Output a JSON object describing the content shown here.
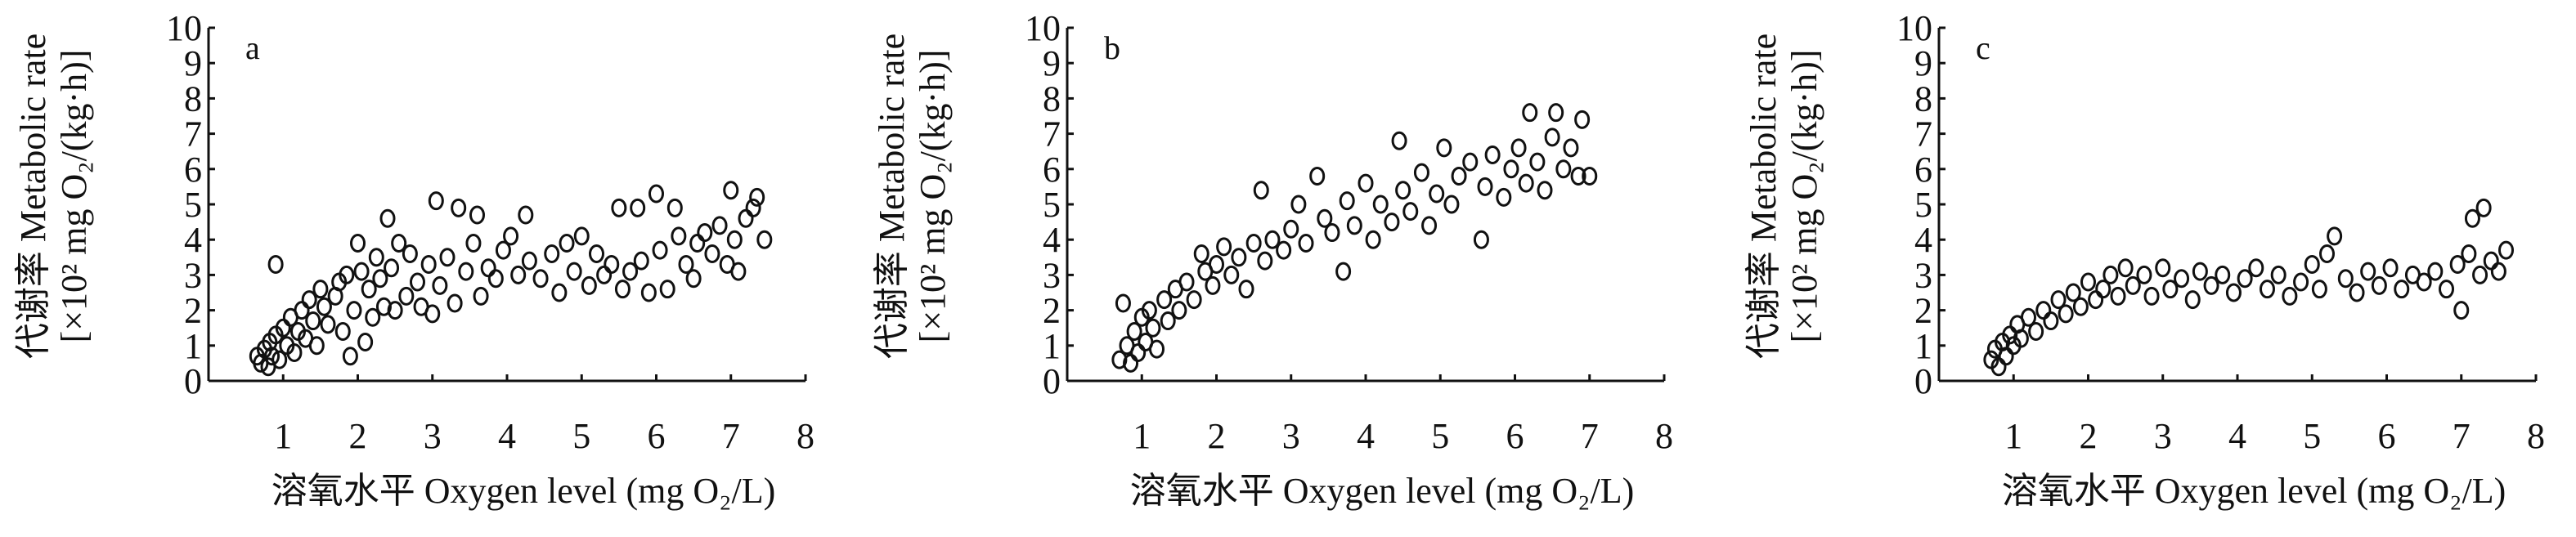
{
  "chart_data": [
    {
      "type": "scatter",
      "panel_label": "a",
      "xlabel": "溶氧水平 Oxygen level (mg O₂/L)",
      "ylabel_line1": "代谢率 Metabolic rate",
      "ylabel_line2": "[×10² mg O₂/(kg·h)]",
      "xlim": [
        0,
        8
      ],
      "ylim": [
        0,
        10
      ],
      "xticks": [
        "1",
        "2",
        "3",
        "4",
        "5",
        "6",
        "7",
        "8"
      ],
      "yticks": [
        "0",
        "1",
        "2",
        "3",
        "4",
        "5",
        "6",
        "7",
        "8",
        "9",
        "10"
      ],
      "grid": false,
      "points": [
        [
          0.65,
          0.7
        ],
        [
          0.7,
          0.5
        ],
        [
          0.75,
          0.9
        ],
        [
          0.8,
          0.4
        ],
        [
          0.82,
          1.1
        ],
        [
          0.85,
          0.7
        ],
        [
          0.9,
          3.3
        ],
        [
          0.9,
          1.3
        ],
        [
          0.95,
          0.6
        ],
        [
          1.0,
          1.5
        ],
        [
          1.05,
          1.0
        ],
        [
          1.1,
          1.8
        ],
        [
          1.15,
          0.8
        ],
        [
          1.2,
          1.4
        ],
        [
          1.25,
          2.0
        ],
        [
          1.3,
          1.2
        ],
        [
          1.35,
          2.3
        ],
        [
          1.4,
          1.7
        ],
        [
          1.45,
          1.0
        ],
        [
          1.5,
          2.6
        ],
        [
          1.55,
          2.1
        ],
        [
          1.6,
          1.6
        ],
        [
          1.7,
          2.4
        ],
        [
          1.75,
          2.8
        ],
        [
          1.8,
          1.4
        ],
        [
          1.85,
          3.0
        ],
        [
          1.9,
          0.7
        ],
        [
          1.95,
          2.0
        ],
        [
          2.0,
          3.9
        ],
        [
          2.05,
          3.1
        ],
        [
          2.1,
          1.1
        ],
        [
          2.15,
          2.6
        ],
        [
          2.2,
          1.8
        ],
        [
          2.25,
          3.5
        ],
        [
          2.3,
          2.9
        ],
        [
          2.35,
          2.1
        ],
        [
          2.4,
          4.6
        ],
        [
          2.45,
          3.2
        ],
        [
          2.5,
          2.0
        ],
        [
          2.55,
          3.9
        ],
        [
          2.65,
          2.4
        ],
        [
          2.7,
          3.6
        ],
        [
          2.8,
          2.8
        ],
        [
          2.85,
          2.1
        ],
        [
          2.95,
          3.3
        ],
        [
          3.0,
          1.9
        ],
        [
          3.05,
          5.1
        ],
        [
          3.1,
          2.7
        ],
        [
          3.2,
          3.5
        ],
        [
          3.3,
          2.2
        ],
        [
          3.35,
          4.9
        ],
        [
          3.45,
          3.1
        ],
        [
          3.55,
          3.9
        ],
        [
          3.6,
          4.7
        ],
        [
          3.65,
          2.4
        ],
        [
          3.75,
          3.2
        ],
        [
          3.85,
          2.9
        ],
        [
          3.95,
          3.7
        ],
        [
          4.05,
          4.1
        ],
        [
          4.15,
          3.0
        ],
        [
          4.25,
          4.7
        ],
        [
          4.3,
          3.4
        ],
        [
          4.45,
          2.9
        ],
        [
          4.6,
          3.6
        ],
        [
          4.7,
          2.5
        ],
        [
          4.8,
          3.9
        ],
        [
          4.9,
          3.1
        ],
        [
          5.0,
          4.1
        ],
        [
          5.1,
          2.7
        ],
        [
          5.2,
          3.6
        ],
        [
          5.3,
          3.0
        ],
        [
          5.4,
          3.3
        ],
        [
          5.5,
          4.9
        ],
        [
          5.55,
          2.6
        ],
        [
          5.65,
          3.1
        ],
        [
          5.75,
          4.9
        ],
        [
          5.8,
          3.4
        ],
        [
          5.9,
          2.5
        ],
        [
          6.0,
          5.3
        ],
        [
          6.05,
          3.7
        ],
        [
          6.15,
          2.6
        ],
        [
          6.25,
          4.9
        ],
        [
          6.3,
          4.1
        ],
        [
          6.4,
          3.3
        ],
        [
          6.5,
          2.9
        ],
        [
          6.55,
          3.9
        ],
        [
          6.65,
          4.2
        ],
        [
          6.75,
          3.6
        ],
        [
          6.85,
          4.4
        ],
        [
          6.95,
          3.3
        ],
        [
          7.0,
          5.4
        ],
        [
          7.05,
          4.0
        ],
        [
          7.1,
          3.1
        ],
        [
          7.2,
          4.6
        ],
        [
          7.3,
          4.9
        ],
        [
          7.35,
          5.2
        ],
        [
          7.45,
          4.0
        ]
      ]
    },
    {
      "type": "scatter",
      "panel_label": "b",
      "xlabel": "溶氧水平 Oxygen level (mg O₂/L)",
      "ylabel_line1": "代谢率 Metabolic rate",
      "ylabel_line2": "[×10² mg O₂/(kg·h)]",
      "xlim": [
        0,
        8
      ],
      "ylim": [
        0,
        10
      ],
      "xticks": [
        "1",
        "2",
        "3",
        "4",
        "5",
        "6",
        "7",
        "8"
      ],
      "yticks": [
        "0",
        "1",
        "2",
        "3",
        "4",
        "5",
        "6",
        "7",
        "8",
        "9",
        "10"
      ],
      "grid": false,
      "points": [
        [
          0.7,
          0.6
        ],
        [
          0.75,
          2.2
        ],
        [
          0.8,
          1.0
        ],
        [
          0.85,
          0.5
        ],
        [
          0.9,
          1.4
        ],
        [
          0.95,
          0.8
        ],
        [
          1.0,
          1.8
        ],
        [
          1.05,
          1.1
        ],
        [
          1.1,
          2.0
        ],
        [
          1.15,
          1.5
        ],
        [
          1.2,
          0.9
        ],
        [
          1.3,
          2.3
        ],
        [
          1.35,
          1.7
        ],
        [
          1.45,
          2.6
        ],
        [
          1.5,
          2.0
        ],
        [
          1.6,
          2.8
        ],
        [
          1.7,
          2.3
        ],
        [
          1.8,
          3.6
        ],
        [
          1.85,
          3.1
        ],
        [
          1.95,
          2.7
        ],
        [
          2.0,
          3.3
        ],
        [
          2.1,
          3.8
        ],
        [
          2.2,
          3.0
        ],
        [
          2.3,
          3.5
        ],
        [
          2.4,
          2.6
        ],
        [
          2.5,
          3.9
        ],
        [
          2.6,
          5.4
        ],
        [
          2.65,
          3.4
        ],
        [
          2.75,
          4.0
        ],
        [
          2.9,
          3.7
        ],
        [
          3.0,
          4.3
        ],
        [
          3.1,
          5.0
        ],
        [
          3.2,
          3.9
        ],
        [
          3.35,
          5.8
        ],
        [
          3.45,
          4.6
        ],
        [
          3.55,
          4.2
        ],
        [
          3.7,
          3.1
        ],
        [
          3.75,
          5.1
        ],
        [
          3.85,
          4.4
        ],
        [
          4.0,
          5.6
        ],
        [
          4.1,
          4.0
        ],
        [
          4.2,
          5.0
        ],
        [
          4.35,
          4.5
        ],
        [
          4.45,
          6.8
        ],
        [
          4.5,
          5.4
        ],
        [
          4.6,
          4.8
        ],
        [
          4.75,
          5.9
        ],
        [
          4.85,
          4.4
        ],
        [
          4.95,
          5.3
        ],
        [
          5.05,
          6.6
        ],
        [
          5.15,
          5.0
        ],
        [
          5.25,
          5.8
        ],
        [
          5.4,
          6.2
        ],
        [
          5.55,
          4.0
        ],
        [
          5.6,
          5.5
        ],
        [
          5.7,
          6.4
        ],
        [
          5.85,
          5.2
        ],
        [
          5.95,
          6.0
        ],
        [
          6.05,
          6.6
        ],
        [
          6.15,
          5.6
        ],
        [
          6.2,
          7.6
        ],
        [
          6.3,
          6.2
        ],
        [
          6.4,
          5.4
        ],
        [
          6.5,
          6.9
        ],
        [
          6.55,
          7.6
        ],
        [
          6.65,
          6.0
        ],
        [
          6.75,
          6.6
        ],
        [
          6.85,
          5.8
        ],
        [
          6.9,
          7.4
        ],
        [
          7.0,
          5.8
        ]
      ]
    },
    {
      "type": "scatter",
      "panel_label": "c",
      "xlabel": "溶氧水平 Oxygen level (mg O₂/L)",
      "ylabel_line1": "代谢率 Metabolic rate",
      "ylabel_line2": "[×10² mg O₂/(kg·h)]",
      "xlim": [
        0,
        8
      ],
      "ylim": [
        0,
        10
      ],
      "xticks": [
        "1",
        "2",
        "3",
        "4",
        "5",
        "6",
        "7",
        "8"
      ],
      "yticks": [
        "0",
        "1",
        "2",
        "3",
        "4",
        "5",
        "6",
        "7",
        "8",
        "9",
        "10"
      ],
      "grid": false,
      "points": [
        [
          0.7,
          0.6
        ],
        [
          0.75,
          0.9
        ],
        [
          0.8,
          0.4
        ],
        [
          0.85,
          1.1
        ],
        [
          0.9,
          0.7
        ],
        [
          0.95,
          1.3
        ],
        [
          1.0,
          1.0
        ],
        [
          1.05,
          1.6
        ],
        [
          1.1,
          1.2
        ],
        [
          1.2,
          1.8
        ],
        [
          1.3,
          1.4
        ],
        [
          1.4,
          2.0
        ],
        [
          1.5,
          1.7
        ],
        [
          1.6,
          2.3
        ],
        [
          1.7,
          1.9
        ],
        [
          1.8,
          2.5
        ],
        [
          1.9,
          2.1
        ],
        [
          2.0,
          2.8
        ],
        [
          2.1,
          2.3
        ],
        [
          2.2,
          2.6
        ],
        [
          2.3,
          3.0
        ],
        [
          2.4,
          2.4
        ],
        [
          2.5,
          3.2
        ],
        [
          2.6,
          2.7
        ],
        [
          2.75,
          3.0
        ],
        [
          2.85,
          2.4
        ],
        [
          3.0,
          3.2
        ],
        [
          3.1,
          2.6
        ],
        [
          3.25,
          2.9
        ],
        [
          3.4,
          2.3
        ],
        [
          3.5,
          3.1
        ],
        [
          3.65,
          2.7
        ],
        [
          3.8,
          3.0
        ],
        [
          3.95,
          2.5
        ],
        [
          4.1,
          2.9
        ],
        [
          4.25,
          3.2
        ],
        [
          4.4,
          2.6
        ],
        [
          4.55,
          3.0
        ],
        [
          4.7,
          2.4
        ],
        [
          4.85,
          2.8
        ],
        [
          5.0,
          3.3
        ],
        [
          5.1,
          2.6
        ],
        [
          5.2,
          3.6
        ],
        [
          5.3,
          4.1
        ],
        [
          5.45,
          2.9
        ],
        [
          5.6,
          2.5
        ],
        [
          5.75,
          3.1
        ],
        [
          5.9,
          2.7
        ],
        [
          6.05,
          3.2
        ],
        [
          6.2,
          2.6
        ],
        [
          6.35,
          3.0
        ],
        [
          6.5,
          2.8
        ],
        [
          6.65,
          3.1
        ],
        [
          6.8,
          2.6
        ],
        [
          6.95,
          3.3
        ],
        [
          7.0,
          2.0
        ],
        [
          7.1,
          3.6
        ],
        [
          7.15,
          4.6
        ],
        [
          7.25,
          3.0
        ],
        [
          7.3,
          4.9
        ],
        [
          7.4,
          3.4
        ],
        [
          7.5,
          3.1
        ],
        [
          7.6,
          3.7
        ]
      ]
    }
  ]
}
